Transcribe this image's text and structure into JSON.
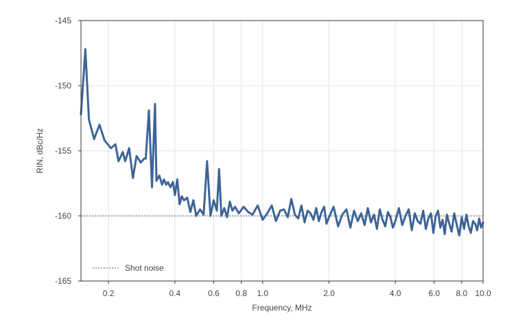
{
  "chart_data": {
    "type": "line",
    "xlabel": "Frequency, MHz",
    "ylabel": "RIN, dBc/Hz",
    "x_scale": "log",
    "xlim": [
      0.15,
      10.0
    ],
    "ylim": [
      -165,
      -145
    ],
    "x_ticks": [
      {
        "value": 0.2,
        "label": "0.2"
      },
      {
        "value": 0.4,
        "label": "0.4"
      },
      {
        "value": 0.6,
        "label": "0.6"
      },
      {
        "value": 0.8,
        "label": "0.8"
      },
      {
        "value": 1.0,
        "label": "1.0"
      },
      {
        "value": 2.0,
        "label": "2.0"
      },
      {
        "value": 4.0,
        "label": "4.0"
      },
      {
        "value": 6.0,
        "label": "6.0"
      },
      {
        "value": 8.0,
        "label": "8.0"
      },
      {
        "value": 10.0,
        "label": "10.0"
      }
    ],
    "y_ticks": [
      {
        "value": -145,
        "label": "-145"
      },
      {
        "value": -150,
        "label": "-150"
      },
      {
        "value": -155,
        "label": "-155"
      },
      {
        "value": -160,
        "label": "-160"
      },
      {
        "value": -165,
        "label": "-165"
      }
    ],
    "grid": true,
    "legend": {
      "position": "bottom-left",
      "entries": [
        {
          "label": "Shot noise",
          "style": "dashed"
        }
      ]
    },
    "shot_noise_level": -160,
    "series": [
      {
        "color": "#3d6496",
        "x": [
          0.15,
          0.157,
          0.163,
          0.172,
          0.182,
          0.192,
          0.205,
          0.215,
          0.222,
          0.232,
          0.238,
          0.248,
          0.258,
          0.268,
          0.28,
          0.29,
          0.295,
          0.305,
          0.315,
          0.325,
          0.33,
          0.34,
          0.35,
          0.357,
          0.365,
          0.372,
          0.382,
          0.392,
          0.4,
          0.41,
          0.42,
          0.43,
          0.44,
          0.455,
          0.47,
          0.485,
          0.5,
          0.52,
          0.54,
          0.56,
          0.58,
          0.6,
          0.62,
          0.635,
          0.65,
          0.67,
          0.69,
          0.71,
          0.73,
          0.75,
          0.78,
          0.82,
          0.86,
          0.9,
          0.95,
          1.0,
          1.05,
          1.1,
          1.15,
          1.2,
          1.25,
          1.3,
          1.35,
          1.4,
          1.45,
          1.5,
          1.55,
          1.6,
          1.65,
          1.7,
          1.75,
          1.8,
          1.85,
          1.9,
          1.95,
          2.0,
          2.1,
          2.2,
          2.3,
          2.4,
          2.5,
          2.6,
          2.7,
          2.8,
          2.9,
          3.0,
          3.1,
          3.2,
          3.3,
          3.4,
          3.5,
          3.6,
          3.7,
          3.8,
          3.9,
          4.0,
          4.15,
          4.3,
          4.45,
          4.6,
          4.75,
          4.9,
          5.05,
          5.2,
          5.35,
          5.5,
          5.65,
          5.8,
          5.95,
          6.1,
          6.25,
          6.4,
          6.55,
          6.7,
          6.85,
          7.0,
          7.2,
          7.4,
          7.6,
          7.8,
          8.0,
          8.2,
          8.4,
          8.6,
          8.8,
          9.0,
          9.2,
          9.4,
          9.6,
          9.8,
          10.0
        ],
        "y": [
          -152.2,
          -147.2,
          -152.6,
          -154.1,
          -153.0,
          -154.2,
          -154.8,
          -154.5,
          -155.8,
          -155.1,
          -155.8,
          -154.8,
          -157.1,
          -155.4,
          -155.9,
          -155.6,
          -155.6,
          -151.9,
          -157.8,
          -151.4,
          -157.3,
          -156.9,
          -157.6,
          -157.2,
          -157.6,
          -157.4,
          -157.8,
          -157.4,
          -158.4,
          -157.2,
          -159.1,
          -158.5,
          -158.8,
          -158.6,
          -159.7,
          -158.8,
          -160.0,
          -159.5,
          -159.9,
          -155.8,
          -160.0,
          -158.8,
          -159.6,
          -156.4,
          -160.0,
          -159.4,
          -160.1,
          -158.9,
          -159.6,
          -159.3,
          -159.8,
          -159.3,
          -159.7,
          -159.9,
          -159.2,
          -160.3,
          -159.8,
          -159.2,
          -160.4,
          -159.6,
          -159.5,
          -160.1,
          -158.7,
          -159.9,
          -160.2,
          -159.2,
          -160.5,
          -159.6,
          -159.8,
          -160.3,
          -159.4,
          -160.4,
          -159.7,
          -159.3,
          -160.6,
          -160.1,
          -159.3,
          -160.8,
          -159.9,
          -159.5,
          -160.9,
          -159.6,
          -160.4,
          -159.8,
          -160.7,
          -159.4,
          -160.5,
          -159.9,
          -161.0,
          -159.5,
          -160.3,
          -160.8,
          -159.7,
          -160.1,
          -160.9,
          -160.4,
          -159.4,
          -160.7,
          -160.0,
          -159.5,
          -161.1,
          -159.8,
          -160.4,
          -160.6,
          -159.6,
          -161.0,
          -160.2,
          -159.8,
          -161.3,
          -160.0,
          -159.6,
          -160.9,
          -160.3,
          -161.4,
          -159.9,
          -160.5,
          -161.2,
          -159.8,
          -160.7,
          -161.5,
          -160.1,
          -161.0,
          -159.9,
          -160.8,
          -161.3,
          -160.4,
          -160.6,
          -161.1,
          -160.2,
          -160.9,
          -160.5
        ]
      }
    ]
  }
}
